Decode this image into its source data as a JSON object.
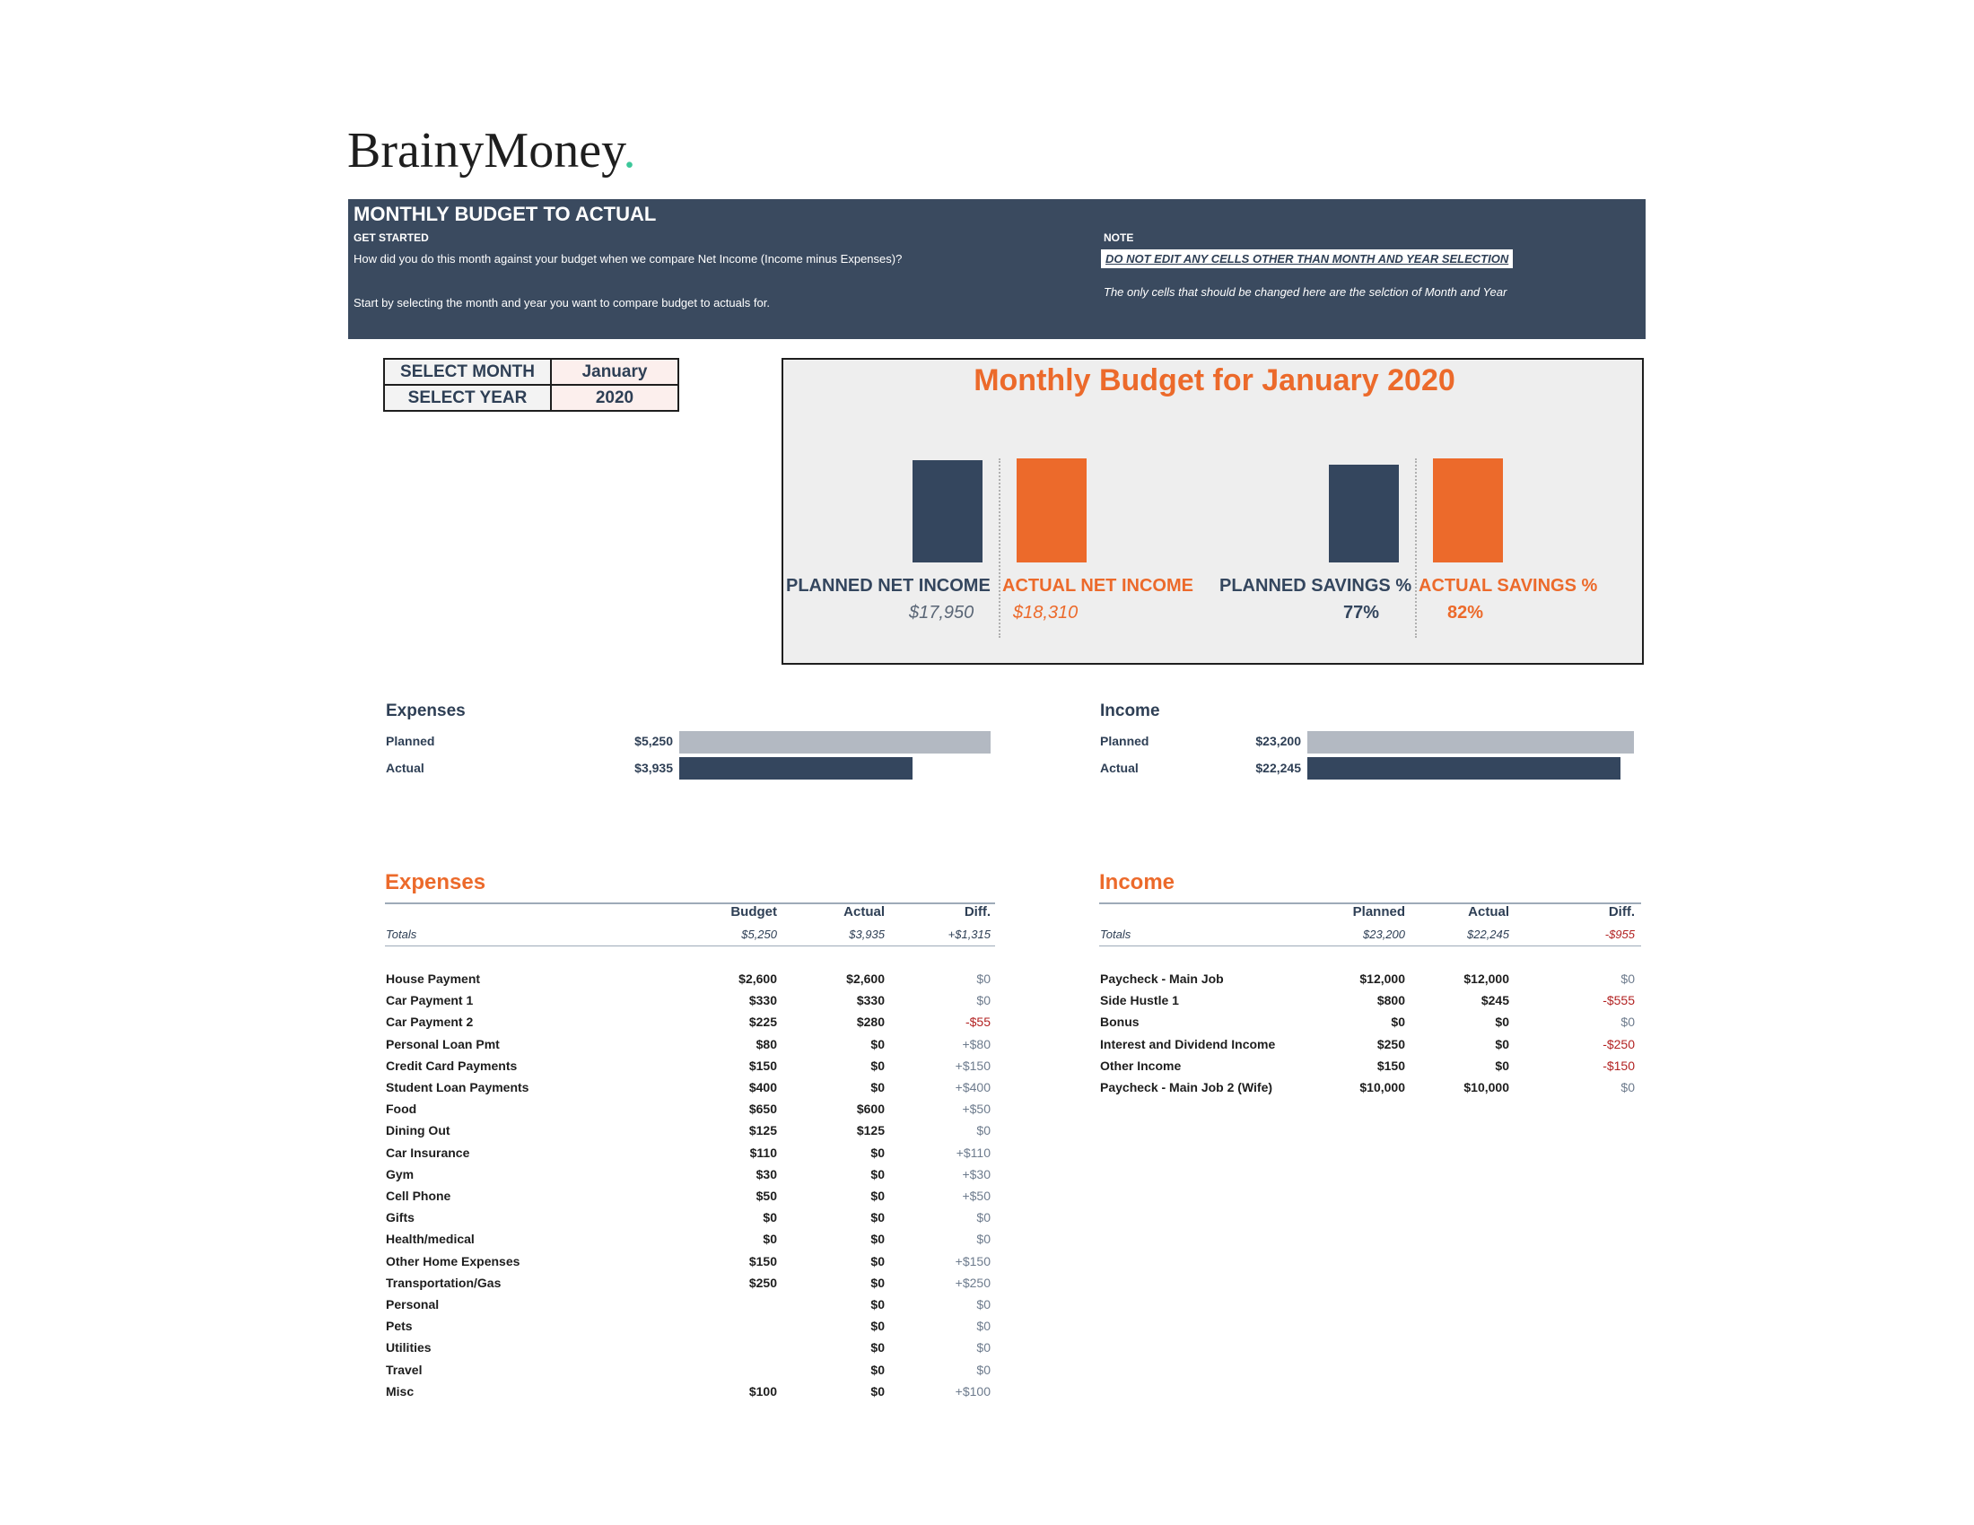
{
  "brand": {
    "name": "BrainyMoney",
    "dot": "."
  },
  "banner": {
    "title": "MONTHLY BUDGET TO ACTUAL",
    "get_started_label": "GET STARTED",
    "line1": "How did you do this month against your budget when we compare Net Income (Income minus Expenses)?",
    "line2": "Start by selecting the month and year you want to compare budget to actuals for.",
    "note_label": "NOTE",
    "note_warning": "DO NOT EDIT ANY CELLS OTHER THAN MONTH AND YEAR SELECTION",
    "note_text": "The only cells that should be changed here are the selction of Month and Year"
  },
  "selection": {
    "month_label": "SELECT MONTH",
    "month_value": "January",
    "year_label": "SELECT YEAR",
    "year_value": "2020"
  },
  "colors": {
    "navy": "#34465e",
    "orange": "#ec6a2b",
    "gray_bar": "#b3b9c2"
  },
  "chart_data": [
    {
      "type": "bar",
      "title": "Monthly Budget for January 2020",
      "categories": [
        "PLANNED NET INCOME",
        "ACTUAL NET INCOME"
      ],
      "values": [
        17950,
        18310
      ],
      "value_labels": [
        "$17,950",
        "$18,310"
      ],
      "ylim": [
        0,
        18310
      ]
    },
    {
      "type": "bar",
      "categories": [
        "PLANNED SAVINGS %",
        "ACTUAL SAVINGS %"
      ],
      "values": [
        77,
        82
      ],
      "value_labels": [
        "77%",
        "82%"
      ],
      "ylim": [
        0,
        82
      ]
    },
    {
      "type": "bar",
      "orientation": "horizontal",
      "title": "Expenses",
      "categories": [
        "Planned",
        "Actual"
      ],
      "values": [
        5250,
        3935
      ],
      "value_labels": [
        "$5,250",
        "$3,935"
      ],
      "xlim": [
        0,
        5250
      ]
    },
    {
      "type": "bar",
      "orientation": "horizontal",
      "title": "Income",
      "categories": [
        "Planned",
        "Actual"
      ],
      "values": [
        23200,
        22245
      ],
      "value_labels": [
        "$23,200",
        "$22,245"
      ],
      "xlim": [
        0,
        23200
      ]
    }
  ],
  "expenses": {
    "title": "Expenses",
    "headers": [
      "Budget",
      "Actual",
      "Diff."
    ],
    "totals": {
      "label": "Totals",
      "budget": "$5,250",
      "actual": "$3,935",
      "diff": "+$1,315"
    },
    "rows": [
      {
        "name": "House Payment",
        "budget": "$2,600",
        "actual": "$2,600",
        "diff": "$0"
      },
      {
        "name": "Car Payment 1",
        "budget": "$330",
        "actual": "$330",
        "diff": "$0"
      },
      {
        "name": "Car Payment 2",
        "budget": "$225",
        "actual": "$280",
        "diff": "-$55"
      },
      {
        "name": "Personal Loan Pmt",
        "budget": "$80",
        "actual": "$0",
        "diff": "+$80"
      },
      {
        "name": "Credit Card Payments",
        "budget": "$150",
        "actual": "$0",
        "diff": "+$150"
      },
      {
        "name": "Student Loan Payments",
        "budget": "$400",
        "actual": "$0",
        "diff": "+$400"
      },
      {
        "name": "Food",
        "budget": "$650",
        "actual": "$600",
        "diff": "+$50"
      },
      {
        "name": "Dining Out",
        "budget": "$125",
        "actual": "$125",
        "diff": "$0"
      },
      {
        "name": "Car Insurance",
        "budget": "$110",
        "actual": "$0",
        "diff": "+$110"
      },
      {
        "name": "Gym",
        "budget": "$30",
        "actual": "$0",
        "diff": "+$30"
      },
      {
        "name": "Cell Phone",
        "budget": "$50",
        "actual": "$0",
        "diff": "+$50"
      },
      {
        "name": "Gifts",
        "budget": "$0",
        "actual": "$0",
        "diff": "$0"
      },
      {
        "name": "Health/medical",
        "budget": "$0",
        "actual": "$0",
        "diff": "$0"
      },
      {
        "name": "Other Home Expenses",
        "budget": "$150",
        "actual": "$0",
        "diff": "+$150"
      },
      {
        "name": "Transportation/Gas",
        "budget": "$250",
        "actual": "$0",
        "diff": "+$250"
      },
      {
        "name": "Personal",
        "budget": "",
        "actual": "$0",
        "diff": "$0"
      },
      {
        "name": "Pets",
        "budget": "",
        "actual": "$0",
        "diff": "$0"
      },
      {
        "name": "Utilities",
        "budget": "",
        "actual": "$0",
        "diff": "$0"
      },
      {
        "name": "Travel",
        "budget": "",
        "actual": "$0",
        "diff": "$0"
      },
      {
        "name": "Misc",
        "budget": "$100",
        "actual": "$0",
        "diff": "+$100"
      }
    ]
  },
  "income": {
    "title": "Income",
    "headers": [
      "Planned",
      "Actual",
      "Diff."
    ],
    "totals": {
      "label": "Totals",
      "budget": "$23,200",
      "actual": "$22,245",
      "diff": "-$955"
    },
    "rows": [
      {
        "name": "Paycheck - Main Job",
        "budget": "$12,000",
        "actual": "$12,000",
        "diff": "$0"
      },
      {
        "name": "Side Hustle 1",
        "budget": "$800",
        "actual": "$245",
        "diff": "-$555"
      },
      {
        "name": "Bonus",
        "budget": "$0",
        "actual": "$0",
        "diff": "$0"
      },
      {
        "name": "Interest and Dividend Income",
        "budget": "$250",
        "actual": "$0",
        "diff": "-$250"
      },
      {
        "name": "Other Income",
        "budget": "$150",
        "actual": "$0",
        "diff": "-$150"
      },
      {
        "name": "Paycheck - Main Job 2 (Wife)",
        "budget": "$10,000",
        "actual": "$10,000",
        "diff": "$0"
      }
    ]
  }
}
